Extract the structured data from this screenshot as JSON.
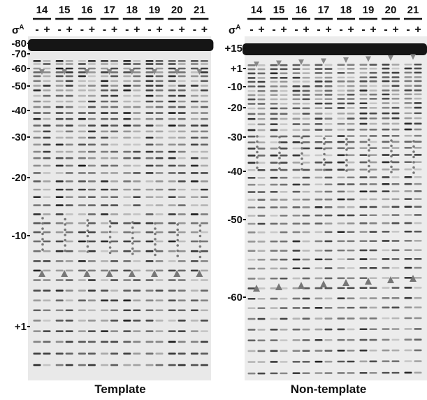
{
  "panels": [
    {
      "lanes": [
        {
          "number": "14",
          "conditions": [
            "-",
            "+"
          ]
        },
        {
          "number": "15",
          "conditions": [
            "-",
            "+"
          ]
        },
        {
          "number": "16",
          "conditions": [
            "-",
            "+"
          ]
        },
        {
          "number": "17",
          "conditions": [
            "-",
            "+"
          ]
        },
        {
          "number": "18",
          "conditions": [
            "-",
            "+"
          ]
        },
        {
          "number": "19",
          "conditions": [
            "-",
            "+"
          ]
        },
        {
          "number": "20",
          "conditions": [
            "-",
            "+"
          ]
        },
        {
          "number": "21",
          "conditions": [
            "-",
            "+"
          ]
        }
      ],
      "factor": {
        "symbol": "σ",
        "superscript": "A"
      },
      "markers": [
        "-80",
        "-70",
        "-60",
        "-50",
        "-40",
        "-30",
        "-20",
        "-10",
        "+1"
      ],
      "title": "Template"
    },
    {
      "lanes": [
        {
          "number": "14",
          "conditions": [
            "-",
            "+"
          ]
        },
        {
          "number": "15",
          "conditions": [
            "-",
            "+"
          ]
        },
        {
          "number": "16",
          "conditions": [
            "-",
            "+"
          ]
        },
        {
          "number": "17",
          "conditions": [
            "-",
            "+"
          ]
        },
        {
          "number": "18",
          "conditions": [
            "-",
            "+"
          ]
        },
        {
          "number": "19",
          "conditions": [
            "-",
            "+"
          ]
        },
        {
          "number": "20",
          "conditions": [
            "-",
            "+"
          ]
        },
        {
          "number": "21",
          "conditions": [
            "-",
            "+"
          ]
        }
      ],
      "factor": {
        "symbol": "σ",
        "superscript": "A"
      },
      "markers": [
        "+15",
        "+1",
        "-10",
        "-20",
        "-30",
        "-40",
        "-50",
        "-60"
      ],
      "title": "Non-template"
    }
  ]
}
